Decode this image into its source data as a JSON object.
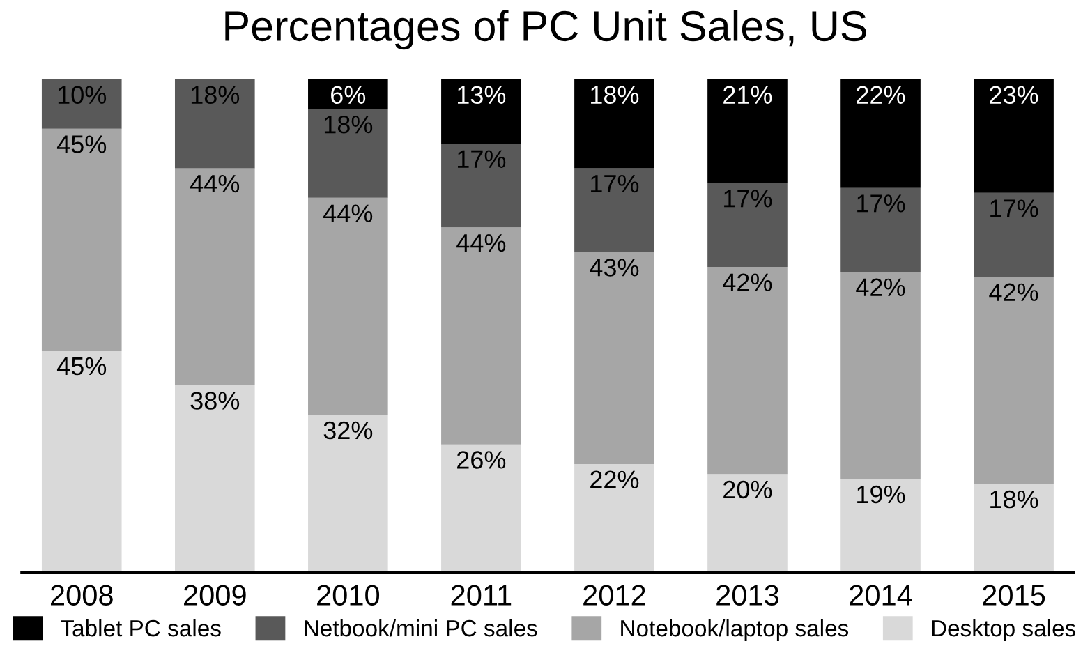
{
  "chart_data": {
    "type": "bar",
    "title": "Percentages of PC Unit Sales, US",
    "categories": [
      "2008",
      "2009",
      "2010",
      "2011",
      "2012",
      "2013",
      "2014",
      "2015"
    ],
    "stacked": true,
    "tick_labels": "x",
    "grid": false,
    "legend": "bottom",
    "series": [
      {
        "name": "Desktop sales",
        "color": "#d9d9d9",
        "values": [
          45,
          38,
          32,
          26,
          22,
          20,
          19,
          18
        ],
        "value_labels": [
          "45%",
          "38%",
          "32%",
          "26%",
          "22%",
          "20%",
          "19%",
          "18%"
        ]
      },
      {
        "name": "Notebook/laptop sales",
        "color": "#a6a6a6",
        "values": [
          45,
          44,
          44,
          44,
          43,
          42,
          42,
          42
        ],
        "value_labels": [
          "45%",
          "44%",
          "44%",
          "44%",
          "43%",
          "42%",
          "42%",
          "42%"
        ]
      },
      {
        "name": "Netbook/mini PC sales",
        "color": "#595959",
        "values": [
          10,
          18,
          18,
          17,
          17,
          17,
          17,
          17
        ],
        "value_labels": [
          "10%",
          "18%",
          "18%",
          "17%",
          "17%",
          "17%",
          "17%",
          "17%"
        ]
      },
      {
        "name": "Tablet PC sales",
        "color": "#000000",
        "values": [
          null,
          null,
          6,
          13,
          18,
          21,
          22,
          23
        ],
        "value_labels": [
          null,
          null,
          "6%",
          "13%",
          "18%",
          "21%",
          "22%",
          "23%"
        ]
      }
    ]
  }
}
